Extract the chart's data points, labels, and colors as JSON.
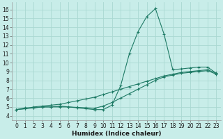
{
  "xlabel": "Humidex (Indice chaleur)",
  "xlim": [
    -0.5,
    23.5
  ],
  "ylim": [
    3.5,
    16.8
  ],
  "xticks": [
    0,
    1,
    2,
    3,
    4,
    5,
    6,
    7,
    8,
    9,
    10,
    11,
    12,
    13,
    14,
    15,
    16,
    17,
    18,
    19,
    20,
    21,
    22,
    23
  ],
  "yticks": [
    4,
    5,
    6,
    7,
    8,
    9,
    10,
    11,
    12,
    13,
    14,
    15,
    16
  ],
  "bg_color": "#c8ede9",
  "grid_color": "#aad8d2",
  "line_color": "#1e7a65",
  "line1_x": [
    0,
    1,
    2,
    3,
    4,
    5,
    6,
    7,
    8,
    9,
    10,
    11,
    12,
    13,
    14,
    15,
    16,
    17,
    18,
    19,
    20,
    21,
    22,
    23
  ],
  "line1_y": [
    4.7,
    4.9,
    4.9,
    5.0,
    5.0,
    5.1,
    5.0,
    4.9,
    4.8,
    4.7,
    4.7,
    5.2,
    7.4,
    11.0,
    13.5,
    15.2,
    16.1,
    13.2,
    9.2,
    9.3,
    9.4,
    9.5,
    9.5,
    8.8
  ],
  "line2_x": [
    0,
    1,
    2,
    3,
    4,
    5,
    6,
    7,
    8,
    9,
    10,
    11,
    12,
    13,
    14,
    15,
    16,
    17,
    18,
    19,
    20,
    21,
    22,
    23
  ],
  "line2_y": [
    4.7,
    4.8,
    5.0,
    5.1,
    5.2,
    5.3,
    5.5,
    5.7,
    5.9,
    6.1,
    6.4,
    6.7,
    7.0,
    7.3,
    7.6,
    7.9,
    8.2,
    8.5,
    8.7,
    8.9,
    9.0,
    9.1,
    9.2,
    8.8
  ],
  "line3_x": [
    0,
    1,
    2,
    3,
    4,
    5,
    6,
    7,
    8,
    9,
    10,
    11,
    12,
    13,
    14,
    15,
    16,
    17,
    18,
    19,
    20,
    21,
    22,
    23
  ],
  "line3_y": [
    4.7,
    4.8,
    4.9,
    5.0,
    5.0,
    5.0,
    5.0,
    4.95,
    4.9,
    4.85,
    5.1,
    5.5,
    6.0,
    6.5,
    7.0,
    7.5,
    8.0,
    8.4,
    8.6,
    8.8,
    8.9,
    9.0,
    9.1,
    8.7
  ]
}
